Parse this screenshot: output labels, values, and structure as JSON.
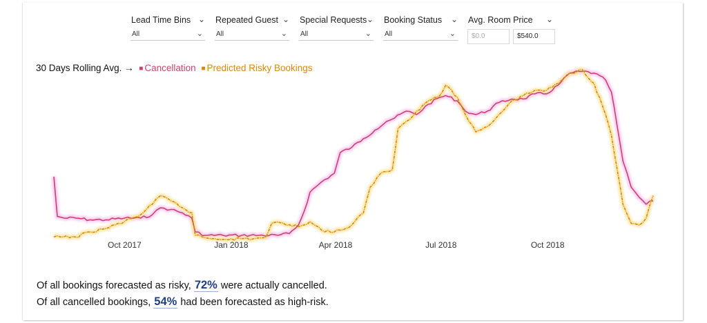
{
  "filters": [
    {
      "label": "Lead Time Bins",
      "value": "All"
    },
    {
      "label": "Repeated Guest",
      "value": "All"
    },
    {
      "label": "Special Requests",
      "value": "All"
    },
    {
      "label": "Booking Status",
      "value": "All"
    }
  ],
  "price_filter": {
    "label": "Avg. Room Price",
    "min_value": "$0.0",
    "max_value": "$540.0"
  },
  "legend": {
    "lead": "30 Days Rolling Avg. →",
    "marker": "■"
  },
  "stats": {
    "line1_prefix": "Of all bookings forecasted as risky, ",
    "line1_pct": "72%",
    "line1_suffix": " were actually cancelled.",
    "line2_prefix": "Of all cancelled bookings, ",
    "line2_pct": "54%",
    "line2_suffix": " had been forecasted as high-risk."
  },
  "icons": {
    "chevron": "chevron-down-icon"
  },
  "chart_data": {
    "type": "line",
    "x_ticks": [
      "Oct 2017",
      "Jan 2018",
      "Apr 2018",
      "Jul 2018",
      "Oct 2018"
    ],
    "x_tick_dates": [
      "2017-10-01",
      "2018-01-01",
      "2018-04-01",
      "2018-07-01",
      "2018-10-01"
    ],
    "x_range": [
      "2017-08-01",
      "2018-12-31"
    ],
    "y_axis_visible": false,
    "ylim": [
      0,
      1
    ],
    "grid": false,
    "legend_position": "top-left",
    "series": [
      {
        "name": "Cancellation",
        "color": "#c8446e",
        "glow": "#f6c6f0",
        "points": [
          [
            "2017-08-01",
            0.36
          ],
          [
            "2017-08-04",
            0.13
          ],
          [
            "2017-08-10",
            0.12
          ],
          [
            "2017-08-20",
            0.12
          ],
          [
            "2017-09-01",
            0.11
          ],
          [
            "2017-09-15",
            0.11
          ],
          [
            "2017-10-01",
            0.12
          ],
          [
            "2017-10-15",
            0.12
          ],
          [
            "2017-10-25",
            0.14
          ],
          [
            "2017-11-01",
            0.18
          ],
          [
            "2017-11-10",
            0.17
          ],
          [
            "2017-11-20",
            0.15
          ],
          [
            "2017-11-28",
            0.12
          ],
          [
            "2017-12-01",
            0.04
          ],
          [
            "2017-12-10",
            0.02
          ],
          [
            "2017-12-25",
            0.02
          ],
          [
            "2018-01-10",
            0.02
          ],
          [
            "2018-01-25",
            0.02
          ],
          [
            "2018-02-10",
            0.02
          ],
          [
            "2018-02-20",
            0.03
          ],
          [
            "2018-02-28",
            0.08
          ],
          [
            "2018-03-05",
            0.16
          ],
          [
            "2018-03-10",
            0.27
          ],
          [
            "2018-03-20",
            0.33
          ],
          [
            "2018-03-31",
            0.38
          ],
          [
            "2018-04-05",
            0.5
          ],
          [
            "2018-04-15",
            0.53
          ],
          [
            "2018-04-25",
            0.58
          ],
          [
            "2018-05-05",
            0.63
          ],
          [
            "2018-05-15",
            0.68
          ],
          [
            "2018-05-22",
            0.7
          ],
          [
            "2018-06-01",
            0.74
          ],
          [
            "2018-06-10",
            0.72
          ],
          [
            "2018-06-20",
            0.78
          ],
          [
            "2018-06-30",
            0.82
          ],
          [
            "2018-07-05",
            0.83
          ],
          [
            "2018-07-15",
            0.8
          ],
          [
            "2018-07-22",
            0.74
          ],
          [
            "2018-07-31",
            0.72
          ],
          [
            "2018-08-10",
            0.74
          ],
          [
            "2018-08-20",
            0.79
          ],
          [
            "2018-08-31",
            0.81
          ],
          [
            "2018-09-10",
            0.81
          ],
          [
            "2018-09-20",
            0.84
          ],
          [
            "2018-09-30",
            0.84
          ],
          [
            "2018-10-10",
            0.89
          ],
          [
            "2018-10-20",
            0.96
          ],
          [
            "2018-10-31",
            0.97
          ],
          [
            "2018-11-10",
            0.96
          ],
          [
            "2018-11-20",
            0.92
          ],
          [
            "2018-11-25",
            0.85
          ],
          [
            "2018-11-30",
            0.65
          ],
          [
            "2018-12-05",
            0.45
          ],
          [
            "2018-12-12",
            0.3
          ],
          [
            "2018-12-19",
            0.24
          ],
          [
            "2018-12-25",
            0.2
          ],
          [
            "2018-12-31",
            0.22
          ]
        ]
      },
      {
        "name": "Predicted Risky Bookings",
        "color": "#d58a0c",
        "glow": "#ffe6a6",
        "points": [
          [
            "2017-08-01",
            0.01
          ],
          [
            "2017-08-20",
            0.01
          ],
          [
            "2017-09-01",
            0.04
          ],
          [
            "2017-09-15",
            0.06
          ],
          [
            "2017-10-01",
            0.1
          ],
          [
            "2017-10-15",
            0.14
          ],
          [
            "2017-10-25",
            0.2
          ],
          [
            "2017-11-01",
            0.25
          ],
          [
            "2017-11-10",
            0.22
          ],
          [
            "2017-11-20",
            0.18
          ],
          [
            "2017-11-28",
            0.15
          ],
          [
            "2017-12-01",
            0.02
          ],
          [
            "2017-12-15",
            0.0
          ],
          [
            "2018-01-01",
            0.0
          ],
          [
            "2018-01-20",
            0.0
          ],
          [
            "2018-01-31",
            0.01
          ],
          [
            "2018-02-05",
            0.09
          ],
          [
            "2018-02-15",
            0.09
          ],
          [
            "2018-02-28",
            0.07
          ],
          [
            "2018-03-10",
            0.1
          ],
          [
            "2018-03-20",
            0.05
          ],
          [
            "2018-03-31",
            0.04
          ],
          [
            "2018-04-05",
            0.05
          ],
          [
            "2018-04-10",
            0.06
          ],
          [
            "2018-04-15",
            0.08
          ],
          [
            "2018-04-25",
            0.15
          ],
          [
            "2018-05-01",
            0.3
          ],
          [
            "2018-05-10",
            0.38
          ],
          [
            "2018-05-20",
            0.4
          ],
          [
            "2018-05-25",
            0.64
          ],
          [
            "2018-06-01",
            0.68
          ],
          [
            "2018-06-10",
            0.74
          ],
          [
            "2018-06-20",
            0.8
          ],
          [
            "2018-06-30",
            0.83
          ],
          [
            "2018-07-05",
            0.89
          ],
          [
            "2018-07-15",
            0.82
          ],
          [
            "2018-07-22",
            0.72
          ],
          [
            "2018-07-31",
            0.62
          ],
          [
            "2018-08-10",
            0.65
          ],
          [
            "2018-08-20",
            0.72
          ],
          [
            "2018-08-31",
            0.8
          ],
          [
            "2018-09-10",
            0.83
          ],
          [
            "2018-09-20",
            0.86
          ],
          [
            "2018-09-30",
            0.86
          ],
          [
            "2018-10-10",
            0.9
          ],
          [
            "2018-10-20",
            0.96
          ],
          [
            "2018-10-31",
            0.98
          ],
          [
            "2018-11-10",
            0.9
          ],
          [
            "2018-11-20",
            0.72
          ],
          [
            "2018-11-25",
            0.6
          ],
          [
            "2018-11-30",
            0.4
          ],
          [
            "2018-12-05",
            0.2
          ],
          [
            "2018-12-12",
            0.09
          ],
          [
            "2018-12-19",
            0.08
          ],
          [
            "2018-12-25",
            0.12
          ],
          [
            "2018-12-31",
            0.25
          ]
        ]
      }
    ]
  }
}
